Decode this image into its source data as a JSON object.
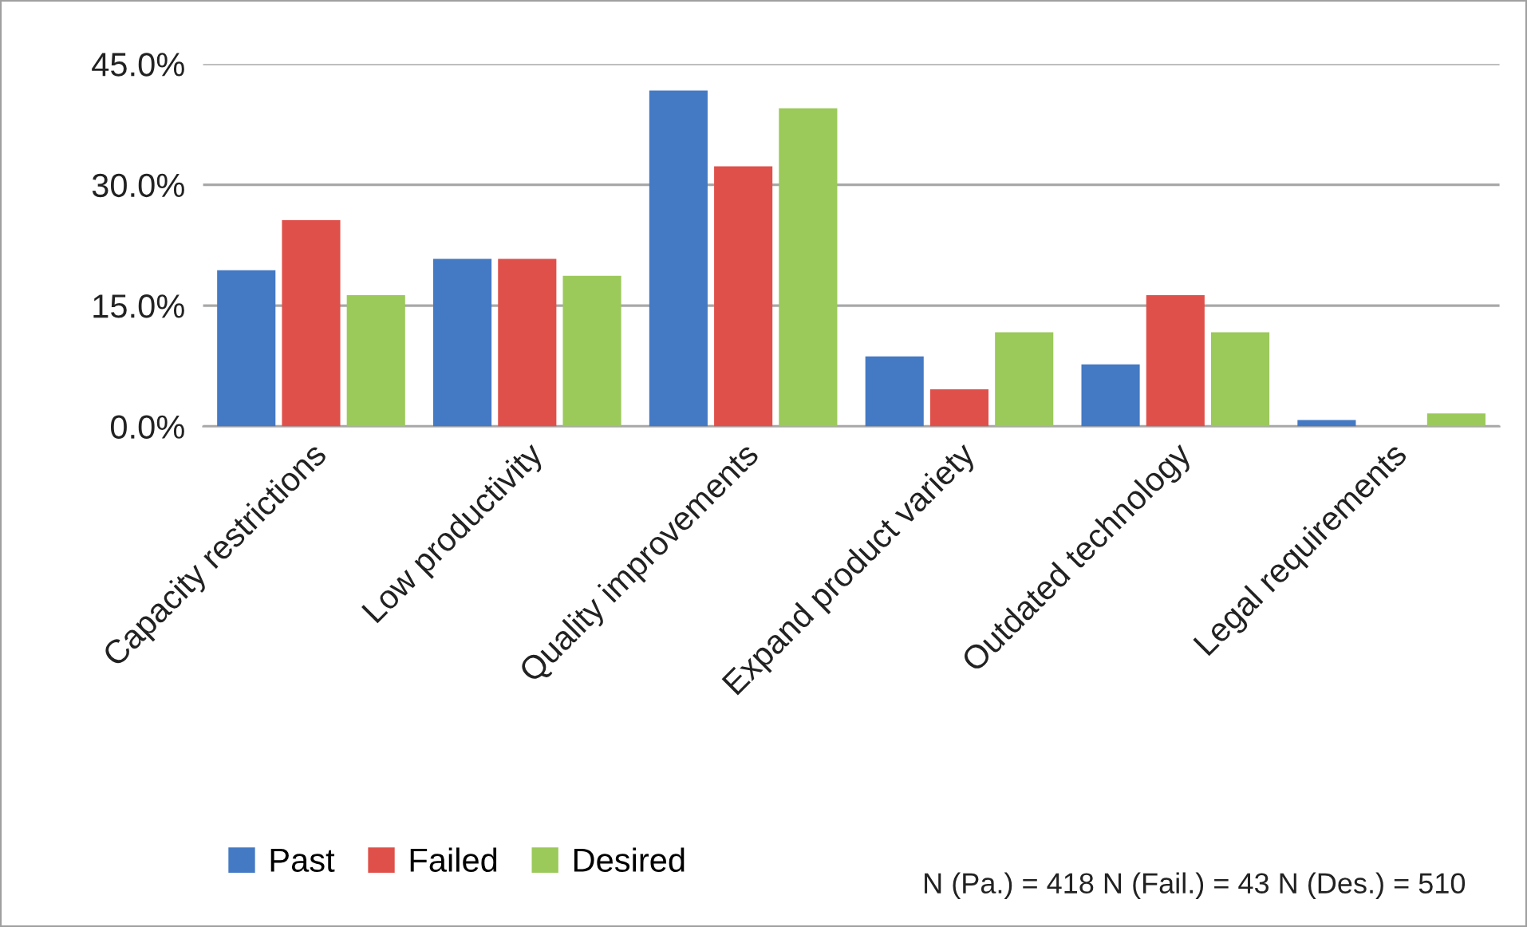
{
  "chart_data": {
    "type": "bar",
    "categories": [
      "Capacity restrictions",
      "Low productivity",
      "Quality improvements",
      "Expand product variety",
      "Outdated technology",
      "Legal requirements"
    ],
    "series": [
      {
        "name": "Past",
        "color": "#4479c4",
        "values": [
          19.4,
          20.8,
          41.7,
          8.7,
          7.7,
          0.8
        ]
      },
      {
        "name": "Failed",
        "color": "#e0504a",
        "values": [
          25.6,
          20.8,
          32.3,
          4.6,
          16.3,
          0.0
        ]
      },
      {
        "name": "Desired",
        "color": "#9bc95a",
        "values": [
          16.3,
          18.7,
          39.5,
          11.7,
          11.7,
          1.6
        ]
      }
    ],
    "ylim": [
      0,
      45
    ],
    "yticks": [
      {
        "value": 0,
        "label": "0.0%"
      },
      {
        "value": 15,
        "label": "15.0%"
      },
      {
        "value": 30,
        "label": "30.0%"
      },
      {
        "value": 45,
        "label": "45.0%"
      }
    ],
    "grid": "y",
    "legend": "bottom",
    "annotations": [
      "N (Pa.) = 418 N (Fail.) = 43 N (Des.) = 510"
    ]
  }
}
